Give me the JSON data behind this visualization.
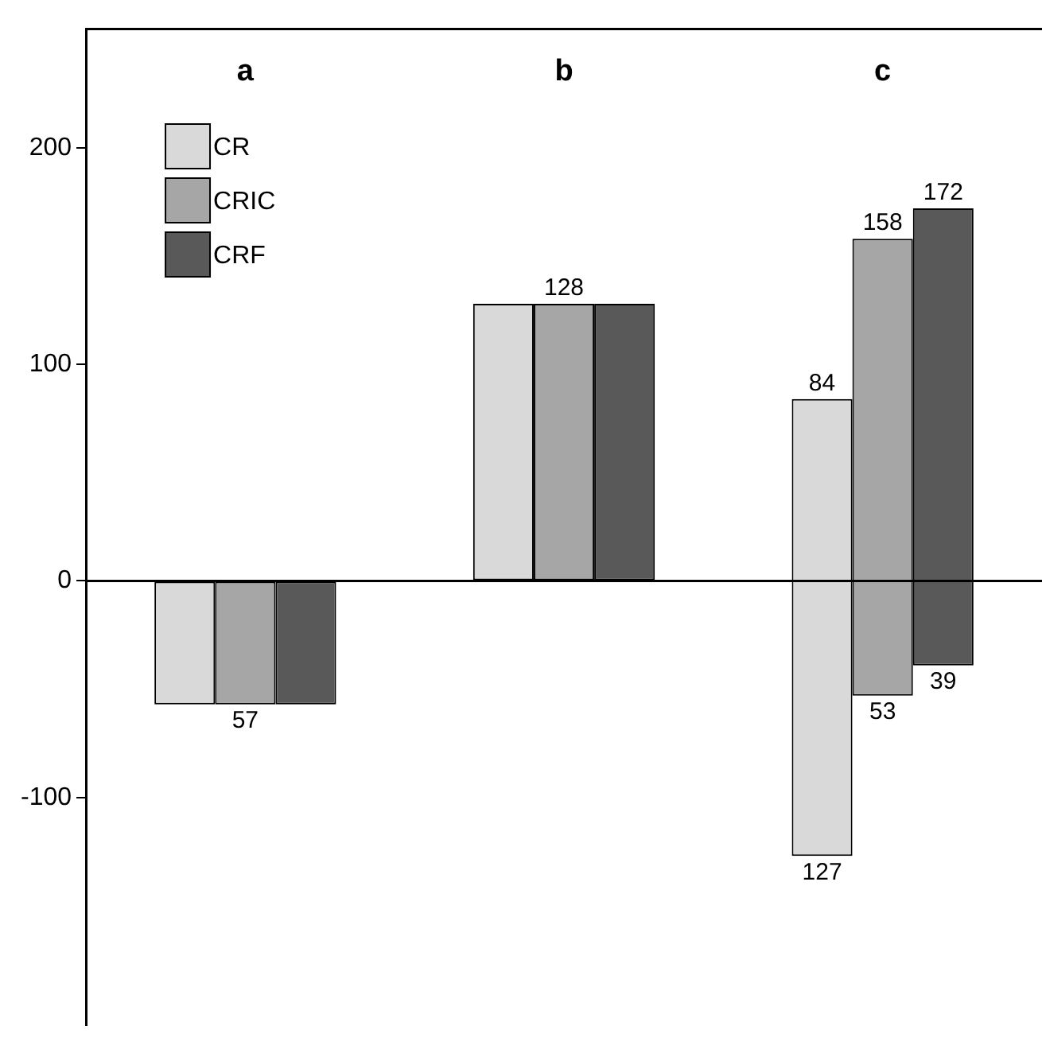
{
  "chart_data": {
    "type": "bar",
    "categories": [
      "a",
      "b",
      "c"
    ],
    "series": [
      {
        "name": "CR",
        "color": "#d9d9d9",
        "values": [
          -57,
          128,
          211
        ],
        "base": [
          0,
          0,
          -127
        ],
        "value_labels": [
          null,
          null,
          "84"
        ]
      },
      {
        "name": "CRIC",
        "color": "#a6a6a6",
        "values": [
          -57,
          128,
          211
        ],
        "base": [
          0,
          0,
          -53
        ],
        "value_labels": [
          "57",
          "128",
          "158"
        ]
      },
      {
        "name": "CRF",
        "color": "#595959",
        "values": [
          -57,
          128,
          211
        ],
        "base": [
          0,
          0,
          -39
        ],
        "value_labels": [
          null,
          null,
          "172"
        ]
      }
    ],
    "annotations": [
      "127",
      "53",
      "39"
    ],
    "ylim": [
      -205,
      255
    ],
    "yticks": [
      -100,
      0,
      100,
      200
    ],
    "grid": false,
    "legend": "top left",
    "ref_lines": [
      {
        "axis": "y",
        "value": 0
      }
    ]
  }
}
